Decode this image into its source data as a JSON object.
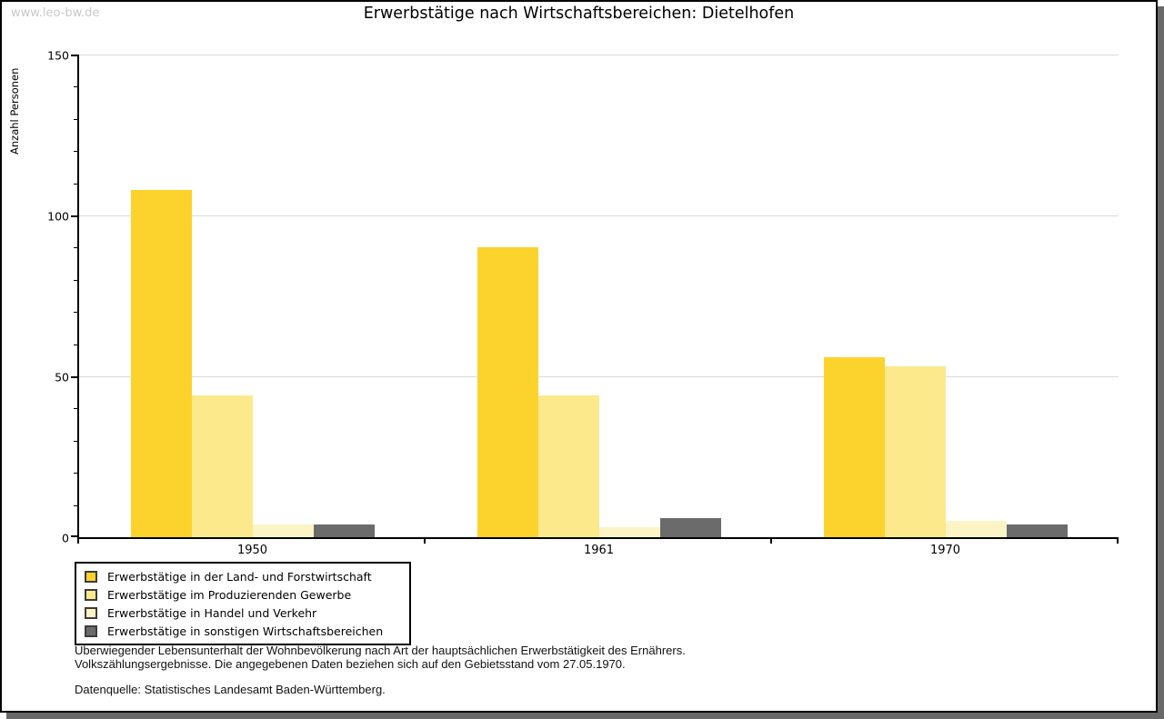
{
  "watermark": "www.leo-bw.de",
  "title": "Erwerbstätige nach Wirtschaftsbereichen: Dietelhofen",
  "chart_data": {
    "type": "bar",
    "title": "Erwerbstätige nach Wirtschaftsbereichen: Dietelhofen",
    "xlabel": "",
    "ylabel": "Anzahl Personen",
    "categories": [
      "1950",
      "1961",
      "1970"
    ],
    "series": [
      {
        "name": "Erwerbstätige in der Land- und Forstwirtschaft",
        "color": "#fcd22d",
        "values": [
          108,
          90,
          56
        ]
      },
      {
        "name": "Erwerbstätige im Produzierenden Gewerbe",
        "color": "#fbe98c",
        "values": [
          44,
          44,
          53
        ]
      },
      {
        "name": "Erwerbstätige in Handel und Verkehr",
        "color": "#fcf4c5",
        "values": [
          4,
          3,
          5
        ]
      },
      {
        "name": "Erwerbstätige in sonstigen Wirtschaftsbereichen",
        "color": "#6b6b6b",
        "values": [
          4,
          6,
          4
        ]
      }
    ],
    "ylim": [
      0,
      150
    ],
    "yticks": [
      0,
      50,
      100,
      150
    ],
    "minor_tick_step": 10,
    "grid": true,
    "legend_position": "bottom-left",
    "colors": {
      "axis": "#000000",
      "gridline": "#dcdcdc",
      "frame_shadow": "#696969",
      "watermark_text": "#c9c9c9"
    }
  },
  "footer": {
    "line1": "Überwiegender Lebensunterhalt der Wohnbevölkerung nach Art der hauptsächlichen Erwerbstätigkeit des Ernährers.",
    "line2": "Volkszählungsergebnisse. Die angegebenen Daten beziehen sich auf den Gebietsstand vom 27.05.1970.",
    "source": "Datenquelle: Statistisches Landesamt Baden-Württemberg."
  }
}
